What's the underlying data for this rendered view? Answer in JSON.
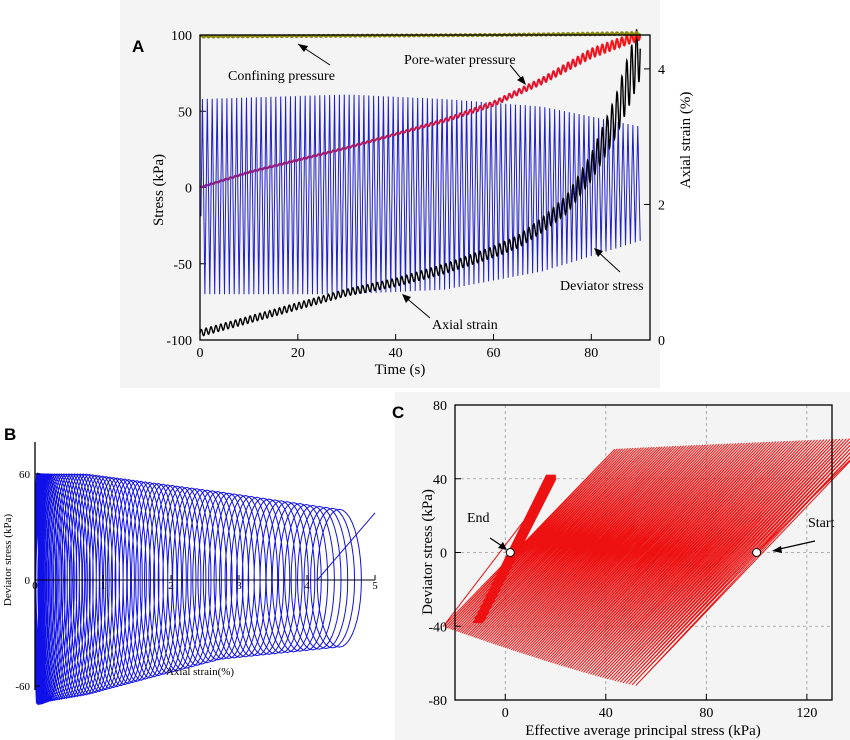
{
  "chart_data": [
    {
      "panel": "A",
      "type": "line",
      "xlabel": "Time (s)",
      "ylabel": "Stress (kPa)",
      "y2label": "Axial strain (%)",
      "xlim": [
        0,
        92
      ],
      "ylim": [
        -100,
        100
      ],
      "y2lim": [
        0,
        4.5
      ],
      "x_ticks": [
        0,
        20,
        40,
        60,
        80
      ],
      "y_ticks": [
        -100,
        -50,
        0,
        50,
        100
      ],
      "y2_ticks": [
        0,
        2,
        4
      ],
      "series": [
        {
          "name": "Confining pressure",
          "axis": "left",
          "color": "#8a8a10",
          "x": [
            0,
            30,
            60,
            90
          ],
          "y": [
            99,
            99.5,
            100,
            101
          ],
          "amplitude": [
            0.5,
            0.5,
            0.5,
            0.8
          ]
        },
        {
          "name": "Pore-water pressure",
          "axis": "left",
          "color_start": "#8a1a8a",
          "color_end": "#ff1010",
          "x": [
            0,
            10,
            20,
            30,
            40,
            50,
            60,
            70,
            80,
            90
          ],
          "y": [
            0,
            10,
            18,
            26,
            35,
            44,
            55,
            70,
            88,
            100
          ],
          "amplitude": [
            0.5,
            0.5,
            0.5,
            0.5,
            0.5,
            1,
            1.5,
            2,
            3,
            3
          ]
        },
        {
          "name": "Deviator stress",
          "axis": "left",
          "color": "#2020c8",
          "x": [
            0,
            30,
            50,
            70,
            90
          ],
          "upper": [
            58,
            61,
            58,
            53,
            40
          ],
          "lower": [
            -70,
            -70,
            -67,
            -55,
            -35
          ],
          "cycles": 90
        },
        {
          "name": "Axial strain",
          "axis": "right",
          "color": "#000000",
          "x": [
            0,
            10,
            20,
            30,
            40,
            50,
            60,
            65,
            70,
            75,
            80,
            85,
            88,
            90
          ],
          "y": [
            0.1,
            0.3,
            0.5,
            0.7,
            0.85,
            1.05,
            1.3,
            1.45,
            1.7,
            2.0,
            2.55,
            3.3,
            3.9,
            4.3
          ],
          "amplitude": [
            0.05,
            0.05,
            0.05,
            0.05,
            0.06,
            0.07,
            0.08,
            0.09,
            0.11,
            0.14,
            0.2,
            0.3,
            0.4,
            0.45
          ]
        }
      ],
      "annotations": [
        "Confining pressure",
        "Pore-water pressure",
        "Deviator stress",
        "Axial strain"
      ]
    },
    {
      "panel": "B",
      "type": "line",
      "xlabel": "Axial strain(%)",
      "ylabel": "Deviator stress (kPa)",
      "xlim": [
        0,
        5
      ],
      "ylim": [
        -70,
        70
      ],
      "x_ticks": [
        0,
        1,
        2,
        3,
        4,
        5
      ],
      "y_ticks": [
        -60,
        0,
        60
      ],
      "color": "#1010e8",
      "loops": {
        "count": 90,
        "strain_start": 0.05,
        "strain_end": 4.8,
        "upper_peak": [
          60,
          60,
          50,
          40
        ],
        "lower_peak": [
          -70,
          -65,
          -45,
          -38
        ],
        "peak_strain": [
          0.2,
          1.0,
          3.0,
          4.8
        ]
      }
    },
    {
      "panel": "C",
      "type": "line",
      "xlabel": "Effective average principal stress (kPa)",
      "ylabel": "Deviator stress (kPa)",
      "xlim": [
        -20,
        130
      ],
      "ylim": [
        -80,
        80
      ],
      "x_ticks": [
        0,
        40,
        80,
        120
      ],
      "y_ticks": [
        -80,
        -40,
        0,
        40,
        80
      ],
      "grid": true,
      "color": "#ee1111",
      "path_start": {
        "x": 100,
        "y": 0,
        "label": "Start"
      },
      "path_end": {
        "x": 2,
        "y": 0,
        "label": "End"
      },
      "cycles": 90
    }
  ],
  "labels": {
    "panel_a": "A",
    "panel_b": "B",
    "panel_c": "C"
  }
}
